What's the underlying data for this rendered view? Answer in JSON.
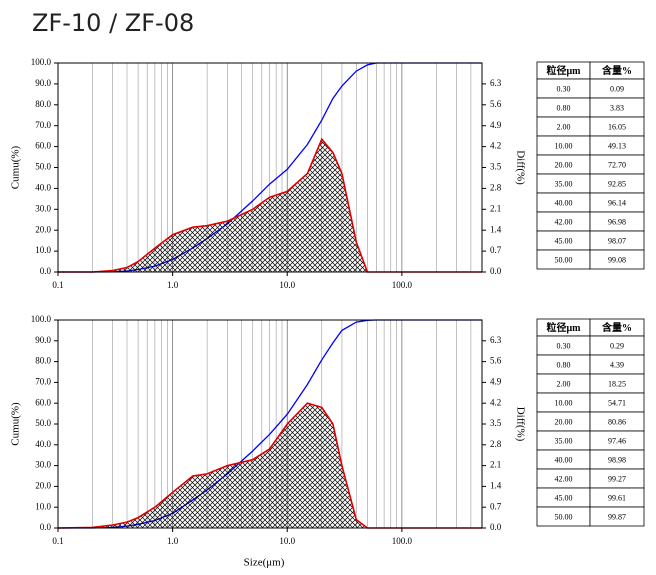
{
  "title": "ZF-10 / ZF-08",
  "chart_data": [
    {
      "type": "line",
      "ylabel": "Cumu(%)",
      "y2label": "Diff(%)",
      "x": [
        0.1,
        0.2,
        0.3,
        0.4,
        0.5,
        0.7,
        1.0,
        1.5,
        2.0,
        3.0,
        5.0,
        7.0,
        10,
        15,
        20,
        25,
        30,
        40,
        50,
        60,
        100,
        500
      ],
      "series": [
        {
          "name": "Cumu",
          "color": "#0000ff",
          "values": [
            0,
            0,
            0.09,
            0.5,
            1.2,
            2.8,
            6.0,
            11.5,
            16.05,
            23,
            34,
            42,
            49.13,
            61,
            72.7,
            83,
            89,
            96.14,
            99.08,
            100,
            100,
            100
          ]
        },
        {
          "name": "Diff",
          "color": "#e00000",
          "axis": "y2",
          "fill": "hatch",
          "values": [
            0,
            0,
            0.05,
            0.15,
            0.35,
            0.8,
            1.25,
            1.5,
            1.55,
            1.7,
            2.1,
            2.5,
            2.7,
            3.3,
            4.45,
            4.0,
            3.3,
            1.0,
            0,
            0,
            0,
            0
          ]
        }
      ],
      "xscale": "log",
      "xlim": [
        0.1,
        500
      ],
      "xticks": [
        0.1,
        {
          "value": 1,
          "label": "1.0"
        },
        {
          "value": 10,
          "label": "10.0"
        },
        {
          "value": 100,
          "label": "100.0"
        }
      ],
      "xminorticks": [
        0.2,
        0.3,
        0.4,
        0.5,
        0.6,
        0.7,
        0.8,
        0.9,
        2,
        3,
        4,
        5,
        6,
        7,
        8,
        9,
        20,
        30,
        40,
        50,
        60,
        70,
        80,
        90,
        200,
        300,
        400
      ],
      "ylim": [
        0,
        100
      ],
      "yticks": [
        {
          "value": 0,
          "label": "0.0"
        },
        {
          "value": 10,
          "label": "10.0"
        },
        {
          "value": 20,
          "label": "20.0"
        },
        {
          "value": 30,
          "label": "30.0"
        },
        {
          "value": 40,
          "label": "40.0"
        },
        {
          "value": 50,
          "label": "50.0"
        },
        {
          "value": 60,
          "label": "60.0"
        },
        {
          "value": 70,
          "label": "70.0"
        },
        {
          "value": 80,
          "label": "80.0"
        },
        {
          "value": 90,
          "label": "90.0"
        },
        {
          "value": 100,
          "label": "100.0"
        }
      ],
      "y2lim": [
        0,
        7
      ],
      "y2ticks": [
        {
          "value": 0,
          "label": "0.0"
        },
        0.7,
        1.4,
        2.1,
        2.8,
        3.5,
        4.2,
        4.9,
        5.6,
        6.3
      ],
      "grid": "x",
      "table": {
        "headers": [
          "粒径μm",
          "含量%"
        ],
        "rows": [
          [
            "0.30",
            "0.09"
          ],
          [
            "0.80",
            "3.83"
          ],
          [
            "2.00",
            "16.05"
          ],
          [
            "10.00",
            "49.13"
          ],
          [
            "20.00",
            "72.70"
          ],
          [
            "35.00",
            "92.85"
          ],
          [
            "40.00",
            "96.14"
          ],
          [
            "42.00",
            "96.98"
          ],
          [
            "45.00",
            "98.07"
          ],
          [
            "50.00",
            "99.08"
          ]
        ]
      }
    },
    {
      "type": "line",
      "xlabel": "Size(μm)",
      "ylabel": "Cumu(%)",
      "y2label": "Diff(%)",
      "x": [
        0.1,
        0.2,
        0.3,
        0.4,
        0.5,
        0.7,
        1.0,
        1.5,
        2.0,
        3.0,
        5.0,
        7.0,
        10,
        15,
        20,
        25,
        30,
        40,
        50,
        60,
        100,
        500
      ],
      "series": [
        {
          "name": "Cumu",
          "color": "#0000ff",
          "values": [
            0,
            0.02,
            0.29,
            0.9,
            1.8,
            3.6,
            7,
            13.5,
            18.25,
            26,
            37,
            45,
            54.71,
            69,
            80.86,
            89,
            95,
            98.98,
            99.87,
            100,
            100,
            100
          ]
        },
        {
          "name": "Diff",
          "color": "#e00000",
          "axis": "y2",
          "fill": "hatch",
          "values": [
            0,
            0.02,
            0.1,
            0.2,
            0.35,
            0.7,
            1.2,
            1.75,
            1.82,
            2.1,
            2.3,
            2.66,
            3.5,
            4.2,
            4.06,
            3.5,
            2.1,
            0.28,
            0,
            0,
            0,
            0
          ]
        }
      ],
      "xscale": "log",
      "xlim": [
        0.1,
        500
      ],
      "xticks": [
        0.1,
        {
          "value": 1,
          "label": "1.0"
        },
        {
          "value": 10,
          "label": "10.0"
        },
        {
          "value": 100,
          "label": "100.0"
        }
      ],
      "xminorticks": [
        0.2,
        0.3,
        0.4,
        0.5,
        0.6,
        0.7,
        0.8,
        0.9,
        2,
        3,
        4,
        5,
        6,
        7,
        8,
        9,
        20,
        30,
        40,
        50,
        60,
        70,
        80,
        90,
        200,
        300,
        400
      ],
      "ylim": [
        0,
        100
      ],
      "yticks": [
        {
          "value": 0,
          "label": "0.0"
        },
        {
          "value": 10,
          "label": "10.0"
        },
        {
          "value": 20,
          "label": "20.0"
        },
        {
          "value": 30,
          "label": "30.0"
        },
        {
          "value": 40,
          "label": "40.0"
        },
        {
          "value": 50,
          "label": "50.0"
        },
        {
          "value": 60,
          "label": "60.0"
        },
        {
          "value": 70,
          "label": "70.0"
        },
        {
          "value": 80,
          "label": "80.0"
        },
        {
          "value": 90,
          "label": "90.0"
        },
        {
          "value": 100,
          "label": "100.0"
        }
      ],
      "y2lim": [
        0,
        7
      ],
      "y2ticks": [
        {
          "value": 0,
          "label": "0.0"
        },
        0.7,
        1.4,
        2.1,
        2.8,
        3.5,
        4.2,
        4.9,
        5.6,
        6.3
      ],
      "grid": "x",
      "table": {
        "headers": [
          "粒径μm",
          "含量%"
        ],
        "rows": [
          [
            "0.30",
            "0.29"
          ],
          [
            "0.80",
            "4.39"
          ],
          [
            "2.00",
            "18.25"
          ],
          [
            "10.00",
            "54.71"
          ],
          [
            "20.00",
            "80.86"
          ],
          [
            "35.00",
            "97.46"
          ],
          [
            "40.00",
            "98.98"
          ],
          [
            "42.00",
            "99.27"
          ],
          [
            "45.00",
            "99.61"
          ],
          [
            "50.00",
            "99.87"
          ]
        ]
      }
    }
  ]
}
